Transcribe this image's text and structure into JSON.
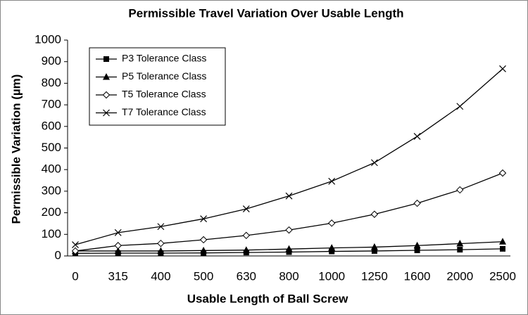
{
  "chart_data": {
    "type": "line",
    "title": "Permissible Travel Variation Over Usable Length",
    "x_label": "Usable Length of Ball Screw",
    "y_label": "Permissible Variation (µm)",
    "categories": [
      "0",
      "315",
      "400",
      "500",
      "630",
      "800",
      "1000",
      "1250",
      "1600",
      "2000",
      "2500"
    ],
    "series": [
      {
        "name": "P3 Tolerance Class",
        "color": "#000000",
        "marker": "square",
        "values": [
          12,
          13,
          13,
          14,
          16,
          18,
          21,
          23,
          26,
          29,
          33
        ]
      },
      {
        "name": "P5 Tolerance Class",
        "color": "#000000",
        "marker": "triangle",
        "values": [
          23,
          23,
          23,
          25,
          27,
          32,
          37,
          41,
          48,
          57,
          66
        ]
      },
      {
        "name": "T5 Tolerance Class",
        "color": "#000000",
        "marker": "diamond",
        "values": [
          23,
          48,
          58,
          75,
          95,
          120,
          152,
          193,
          244,
          306,
          384
        ]
      },
      {
        "name": "T7 Tolerance Class",
        "color": "#000000",
        "marker": "cross",
        "values": [
          52,
          108,
          136,
          172,
          218,
          278,
          346,
          432,
          554,
          693,
          867
        ]
      }
    ],
    "ylim": [
      0,
      1000
    ],
    "yticks": [
      0,
      100,
      200,
      300,
      400,
      500,
      600,
      700,
      800,
      900,
      1000
    ],
    "grid": false,
    "legend": "upper left"
  }
}
